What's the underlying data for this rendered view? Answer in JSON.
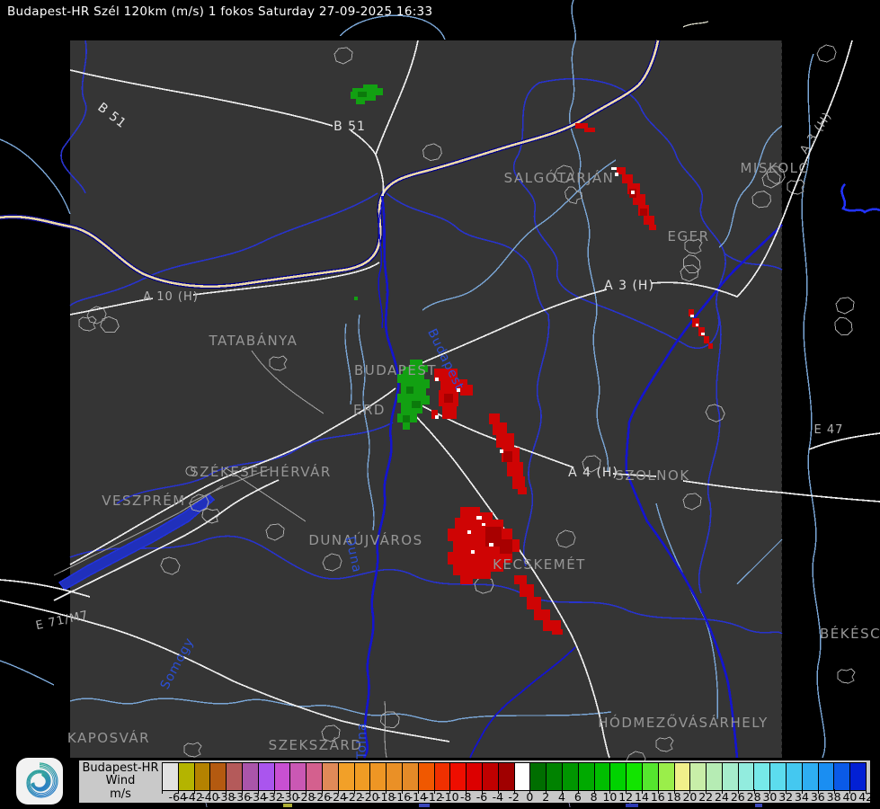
{
  "title": "Budapest-HR Szél 120km (m/s) 1 fokos Saturday 27-09-2025 16:33",
  "colors": {
    "page_bg": "#000000",
    "map_bg": "#353535",
    "county_blue": "#2833cc",
    "river_light": "#7aa6d6",
    "river_dark": "#1414cf",
    "river_bright": "#2233ff",
    "border_navy": "#000088",
    "border_tan": "#ecd9a8",
    "road_white": "#ededed",
    "road_gray": "#9a9a9a",
    "town_gray": "#a8a8a8",
    "label_gray": "#969696",
    "label_blue": "#2b4fd8",
    "echo_red": "#cf0404",
    "echo_red_dark": "#a80000",
    "echo_green": "#12a012",
    "echo_green_dark": "#0b7a0b",
    "echo_white": "#ffffff",
    "legend_bg": "#c9c9c9",
    "logo_teal": "#2fae8c",
    "logo_blue": "#2b7fc4"
  },
  "map": {
    "cities": {
      "tatabanya": "TATABÁNYA",
      "budapest": "BUDAPEST",
      "erd": "ERD",
      "szekesfehervar": "SZÉKESFEHÉRVÁR",
      "veszprem": "VESZPRÉM",
      "dunaujvaros": "DUNAÚJVÁROS",
      "kecskemet": "KECSKEMÉT",
      "szolnok": "SZOLNOK",
      "szekszard": "SZEKSZÁRD",
      "kaposvar": "KAPOSVÁR",
      "hodmezovasarhely": "HÓDMEZŐVÁSÁRHELY",
      "bekescsaba": "BÉKÉSCSABA",
      "salgotarjan": "SALGÓTARJÁN",
      "eger": "EGER",
      "miskolc": "MISKOLC"
    },
    "roads": {
      "b51_a": "B 51",
      "b51_b": "B 51",
      "a10": "A 10 (H)",
      "a3": "A 3 (H)",
      "a3_ne": "A 3 (H)",
      "a4": "A 4 (H)",
      "e71": "E 71/M7",
      "e47": "E 47"
    },
    "regions": {
      "budapest_river": "Budapest",
      "somogy": "Somogy",
      "tolna": "Tolna",
      "duna": "Duna"
    }
  },
  "legend": {
    "product": "Budapest-HR",
    "parameter": "Wind",
    "unit": "m/s",
    "cells": [
      {
        "color": "#e2e2e2",
        "label": "-64"
      },
      {
        "color": "#b4b400",
        "label": "-42"
      },
      {
        "color": "#b48200",
        "label": "-40"
      },
      {
        "color": "#b45a10",
        "label": "-38"
      },
      {
        "color": "#b45a5a",
        "label": "-36"
      },
      {
        "color": "#aa55aa",
        "label": "-34"
      },
      {
        "color": "#aa55ee",
        "label": "-32"
      },
      {
        "color": "#c850d2",
        "label": "-30"
      },
      {
        "color": "#ca58b4",
        "label": "-28"
      },
      {
        "color": "#d4608e",
        "label": "-26"
      },
      {
        "color": "#e08a58",
        "label": "-24"
      },
      {
        "color": "#f2a028",
        "label": "-22"
      },
      {
        "color": "#f09c24",
        "label": "-20"
      },
      {
        "color": "#ee9624",
        "label": "-18"
      },
      {
        "color": "#ea9026",
        "label": "-16"
      },
      {
        "color": "#e48a28",
        "label": "-14"
      },
      {
        "color": "#f05800",
        "label": "-12"
      },
      {
        "color": "#f03000",
        "label": "-10"
      },
      {
        "color": "#ee0e00",
        "label": "-8"
      },
      {
        "color": "#dc0000",
        "label": "-6"
      },
      {
        "color": "#c00000",
        "label": "-4"
      },
      {
        "color": "#a00000",
        "label": "-2"
      },
      {
        "color": "#ffffff",
        "label": "0"
      },
      {
        "color": "#006e00",
        "label": "2"
      },
      {
        "color": "#008200",
        "label": "4"
      },
      {
        "color": "#009600",
        "label": "6"
      },
      {
        "color": "#00aa00",
        "label": "8"
      },
      {
        "color": "#00be00",
        "label": "10"
      },
      {
        "color": "#00d200",
        "label": "12"
      },
      {
        "color": "#12e400",
        "label": "14"
      },
      {
        "color": "#55e62e",
        "label": "16"
      },
      {
        "color": "#9aee4a",
        "label": "18"
      },
      {
        "color": "#f0f08a",
        "label": "20"
      },
      {
        "color": "#c8eea8",
        "label": "22"
      },
      {
        "color": "#b6ecb4",
        "label": "24"
      },
      {
        "color": "#a6edcc",
        "label": "26"
      },
      {
        "color": "#92ecde",
        "label": "28"
      },
      {
        "color": "#76e9e9",
        "label": "30"
      },
      {
        "color": "#5cdcee",
        "label": "32"
      },
      {
        "color": "#44c8f0",
        "label": "34"
      },
      {
        "color": "#2eaef2",
        "label": "36"
      },
      {
        "color": "#1a8ef2",
        "label": "38"
      },
      {
        "color": "#0a5ae8",
        "label": "40"
      },
      {
        "color": "#0220d4",
        "label": "42"
      }
    ]
  }
}
